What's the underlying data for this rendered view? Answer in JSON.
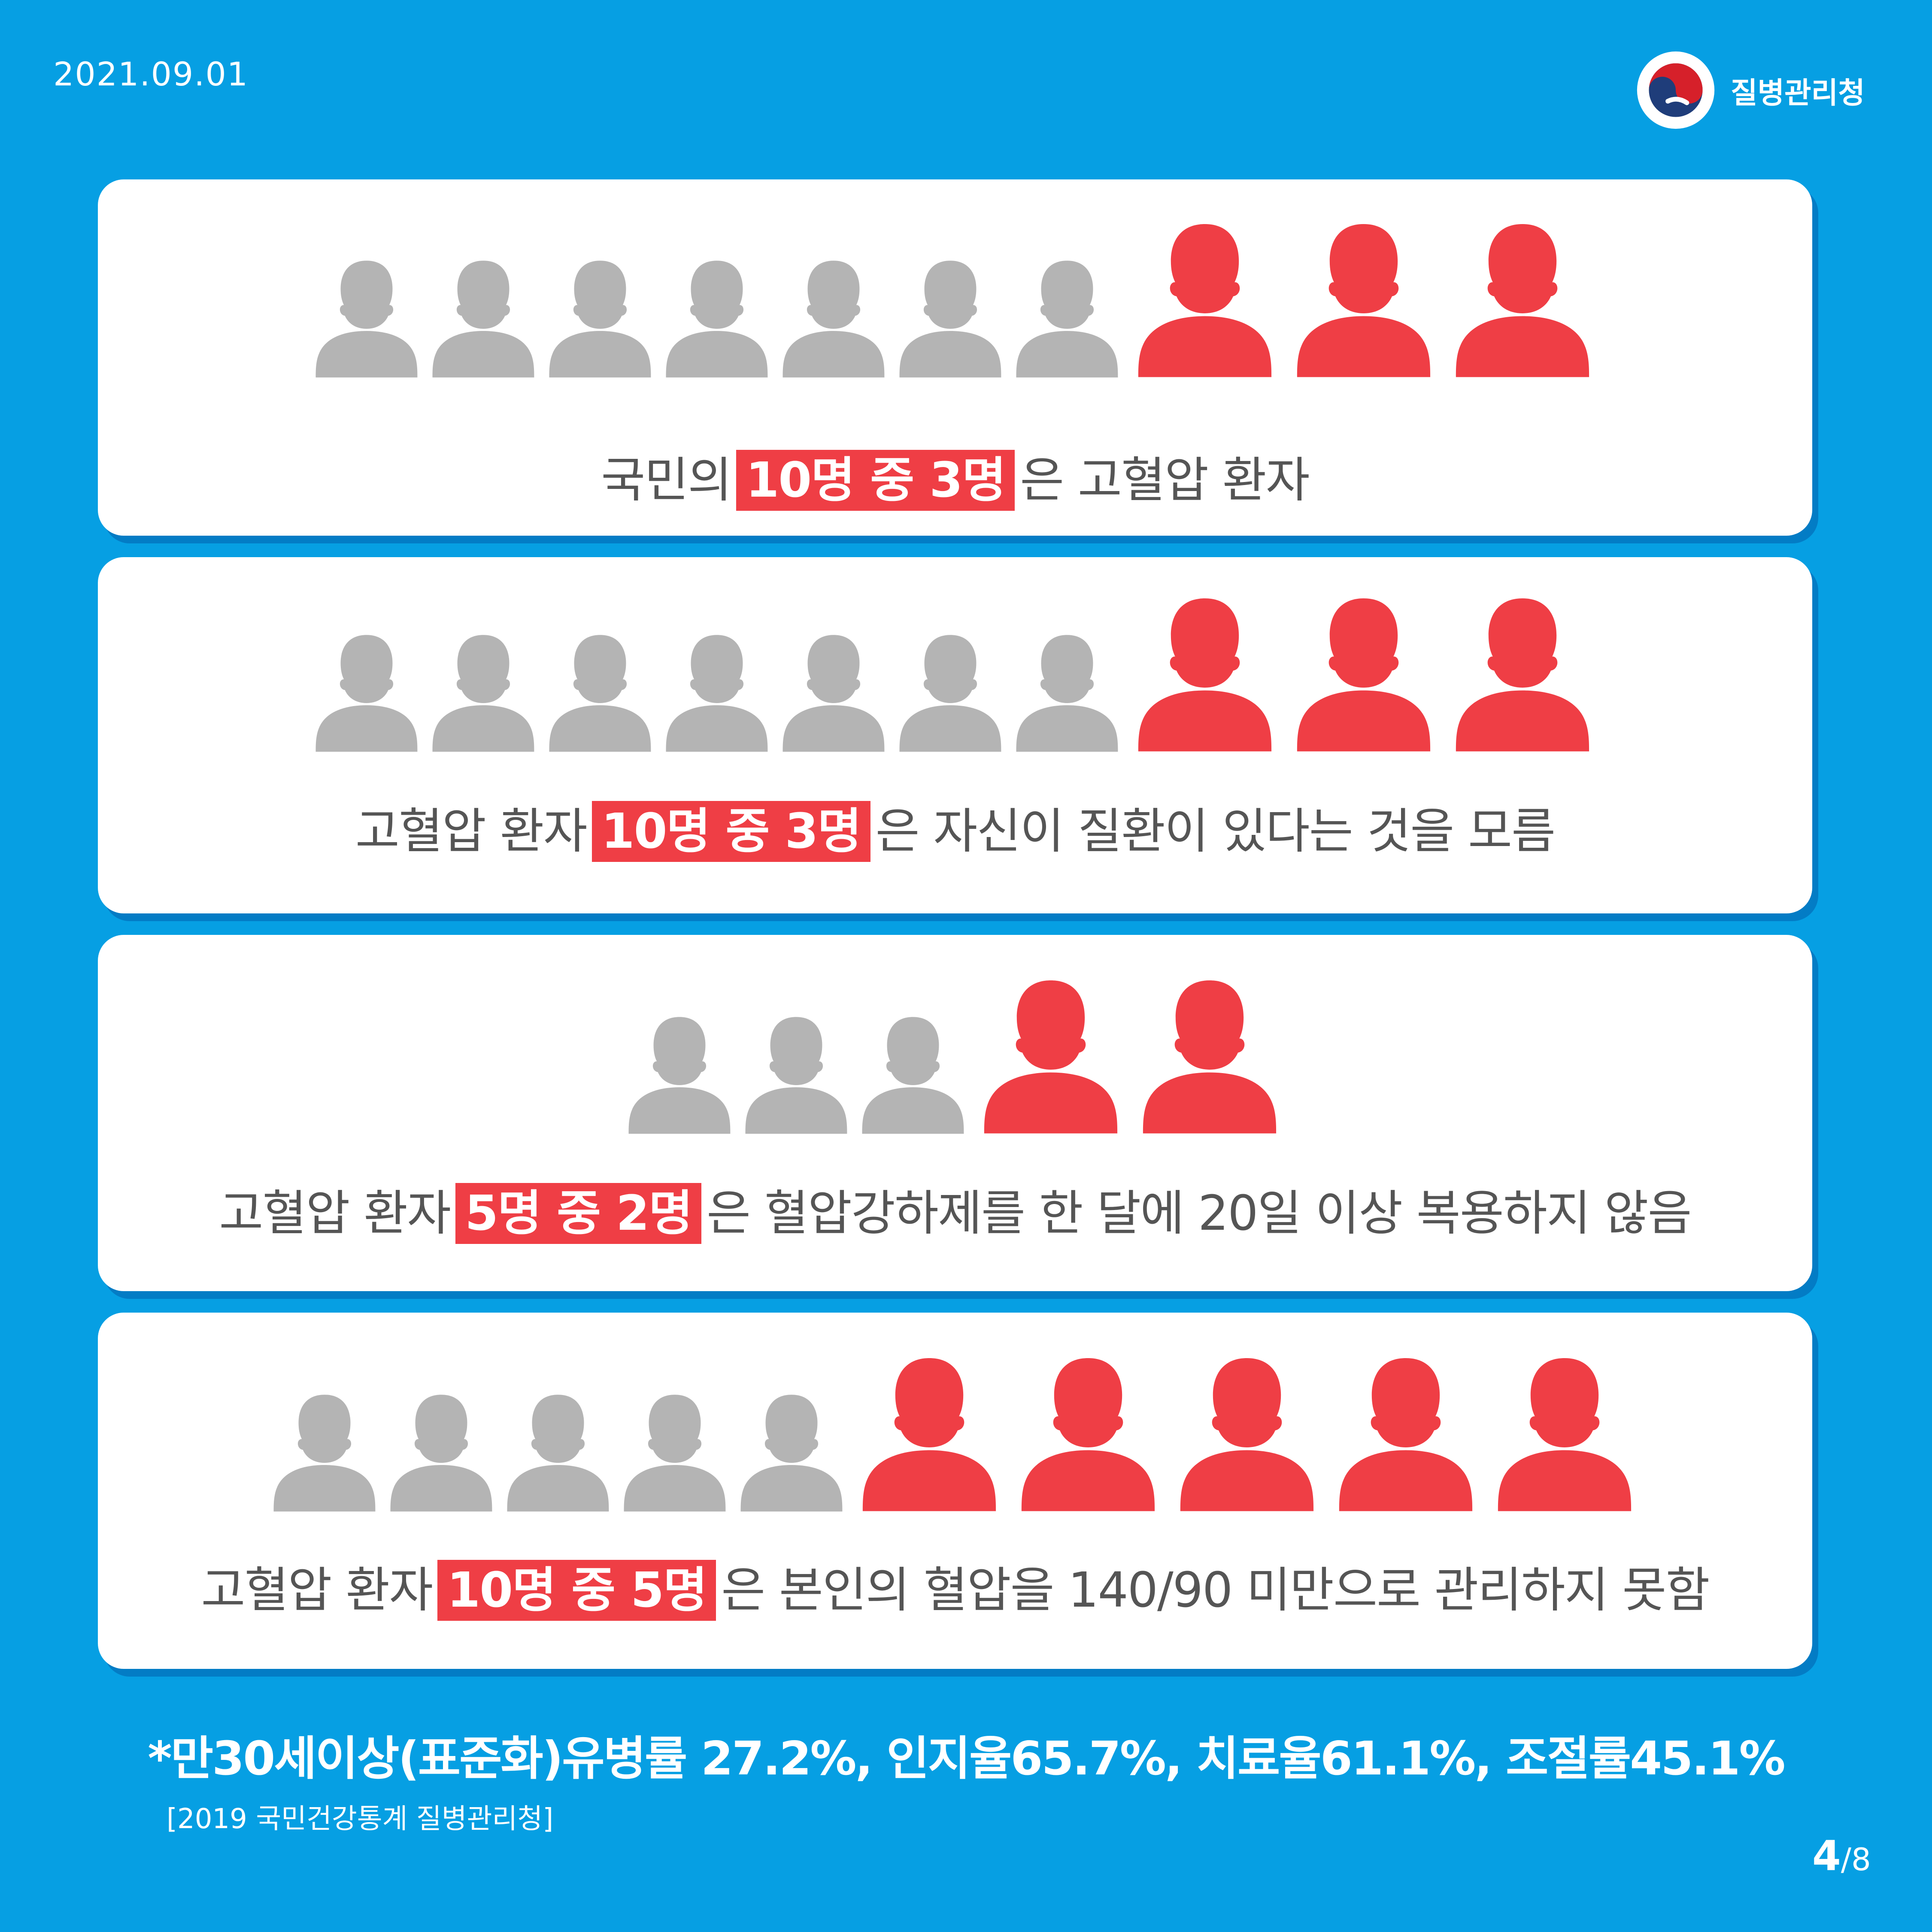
{
  "header": {
    "date": "2021.09.01",
    "org_name": "질병관리청"
  },
  "colors": {
    "background": "#069fe3",
    "highlight": "#ef3e45",
    "inactive_person": "#b4b4b4",
    "card": "#ffffff"
  },
  "panels": [
    {
      "total": 10,
      "affected": 3,
      "prefix": "국민의",
      "highlight": "10명 중 3명",
      "suffix": "은 고혈압 환자"
    },
    {
      "total": 10,
      "affected": 3,
      "prefix": "고혈압 환자",
      "highlight": "10명 중 3명",
      "suffix": "은 자신이 질환이 있다는 것을 모름"
    },
    {
      "total": 5,
      "affected": 2,
      "prefix": "고혈압 환자",
      "highlight": "5명 중 2명",
      "suffix": "은 혈압강하제를 한 달에 20일 이상 복용하지 않음"
    },
    {
      "total": 10,
      "affected": 5,
      "prefix": "고혈압 환자",
      "highlight": "10명 중 5명",
      "suffix": "은 본인의 혈압을 140/90 미만으로 관리하지 못함"
    }
  ],
  "footer": {
    "stat_line": "*만30세이상(표준화)유병률 27.2%, 인지율65.7%, 치료율61.1%, 조절률45.1%",
    "source": "[2019 국민건강통계 질병관리청]",
    "page_current": "4",
    "page_total": "/8"
  }
}
